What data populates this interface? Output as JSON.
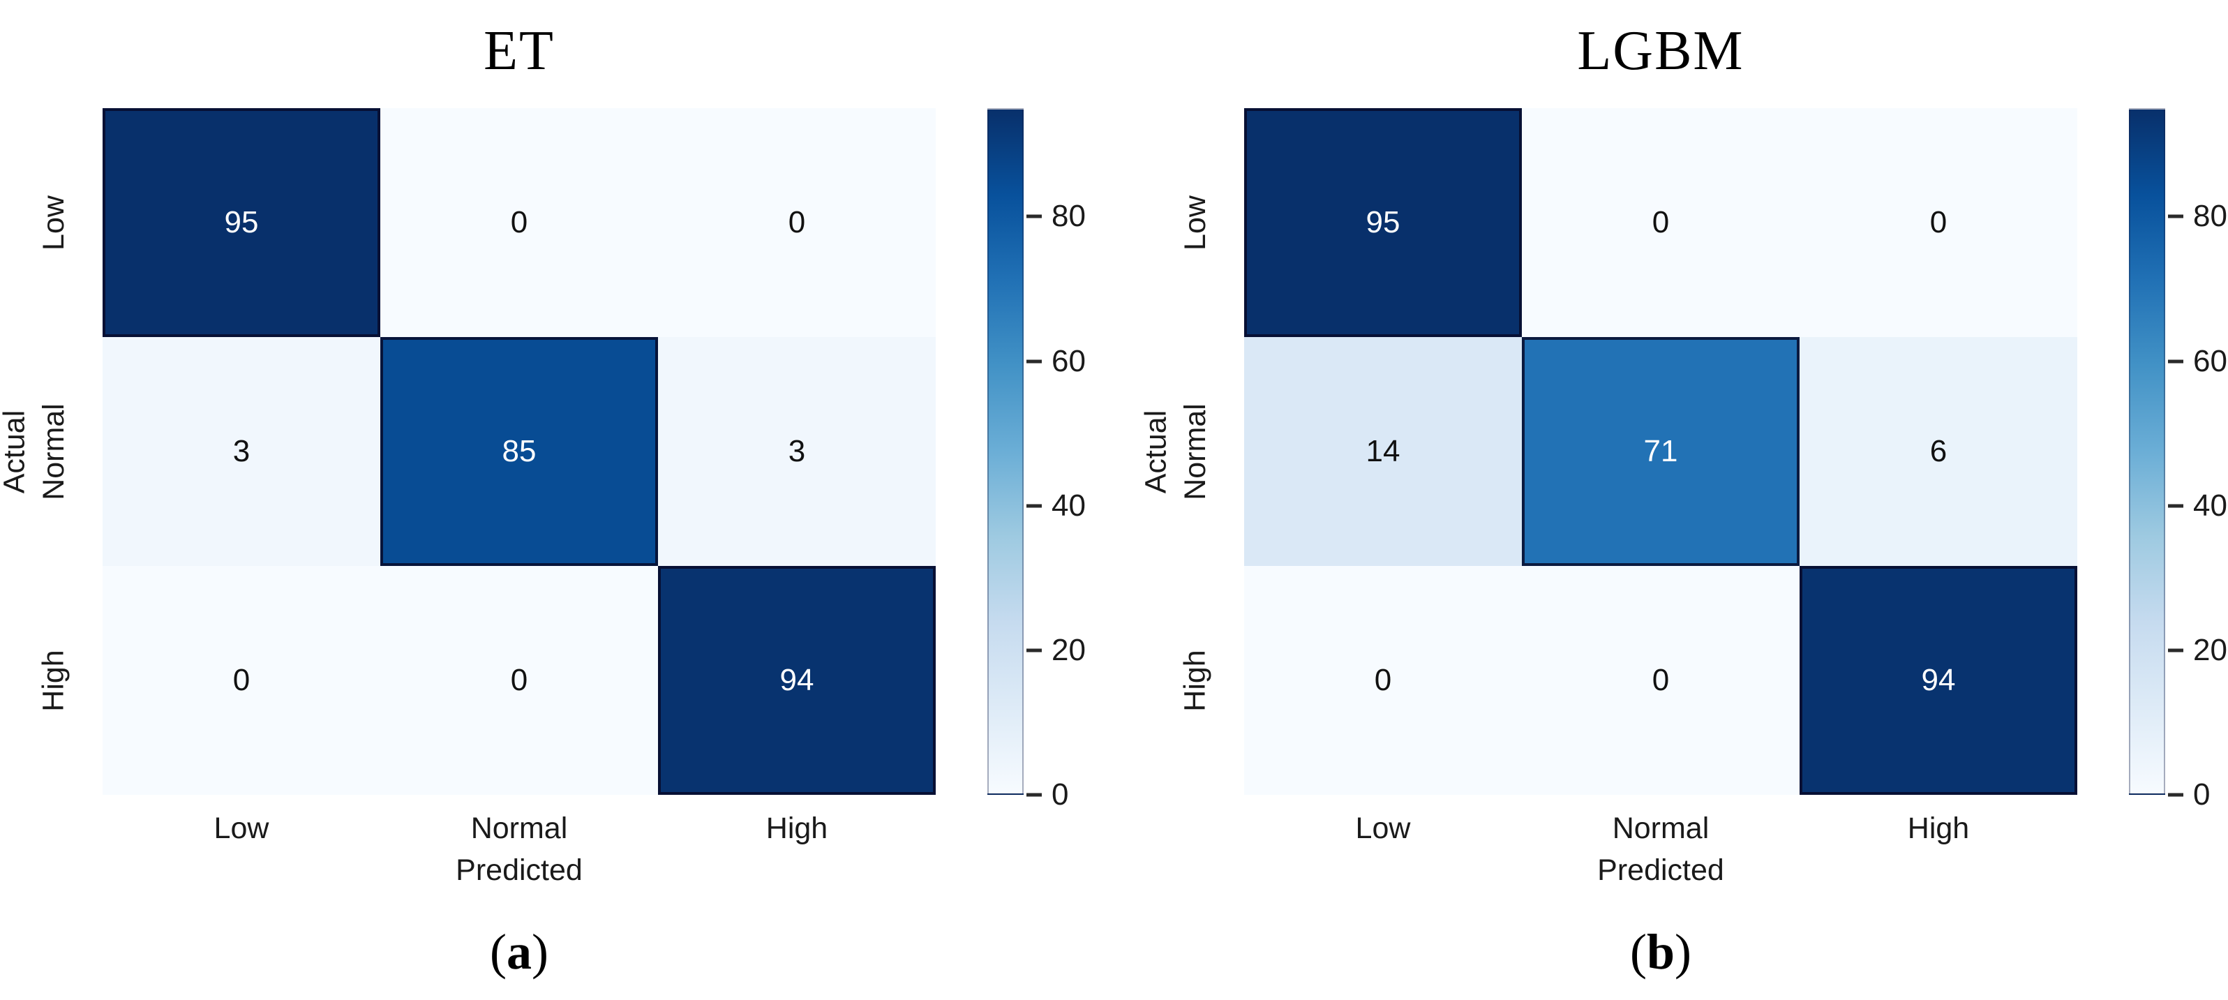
{
  "figure": {
    "background": "#ffffff",
    "text_color": "#1a1a1a"
  },
  "colormap": {
    "name": "Blues",
    "stops": [
      "#f7fbff",
      "#deebf7",
      "#c6dbef",
      "#9ecae1",
      "#6baed6",
      "#4292c6",
      "#2171b5",
      "#08519c",
      "#08306b"
    ],
    "dark_cell_border": "rgba(7,10,42,0.85)",
    "annotation_light": "#ffffff",
    "annotation_dark": "#111111"
  },
  "chart_data": [
    {
      "type": "heatmap",
      "panel": "a",
      "title": "ET",
      "xlabel": "Predicted",
      "ylabel": "Actual",
      "x_categories": [
        "Low",
        "Normal",
        "High"
      ],
      "y_categories": [
        "Low",
        "Normal",
        "High"
      ],
      "values": [
        [
          95,
          0,
          0
        ],
        [
          3,
          85,
          3
        ],
        [
          0,
          0,
          94
        ]
      ],
      "vmin": 0,
      "vmax": 95,
      "colorbar_ticks": [
        0,
        20,
        40,
        60,
        80
      ],
      "legend_position": "right",
      "grid": false,
      "caption": {
        "open": "(",
        "letter": "a",
        "close": ")"
      }
    },
    {
      "type": "heatmap",
      "panel": "b",
      "title": "LGBM",
      "xlabel": "Predicted",
      "ylabel": "Actual",
      "x_categories": [
        "Low",
        "Normal",
        "High"
      ],
      "y_categories": [
        "Low",
        "Normal",
        "High"
      ],
      "values": [
        [
          95,
          0,
          0
        ],
        [
          14,
          71,
          6
        ],
        [
          0,
          0,
          94
        ]
      ],
      "vmin": 0,
      "vmax": 95,
      "colorbar_ticks": [
        0,
        20,
        40,
        60,
        80
      ],
      "legend_position": "right",
      "grid": false,
      "caption": {
        "open": "(",
        "letter": "b",
        "close": ")"
      }
    }
  ]
}
